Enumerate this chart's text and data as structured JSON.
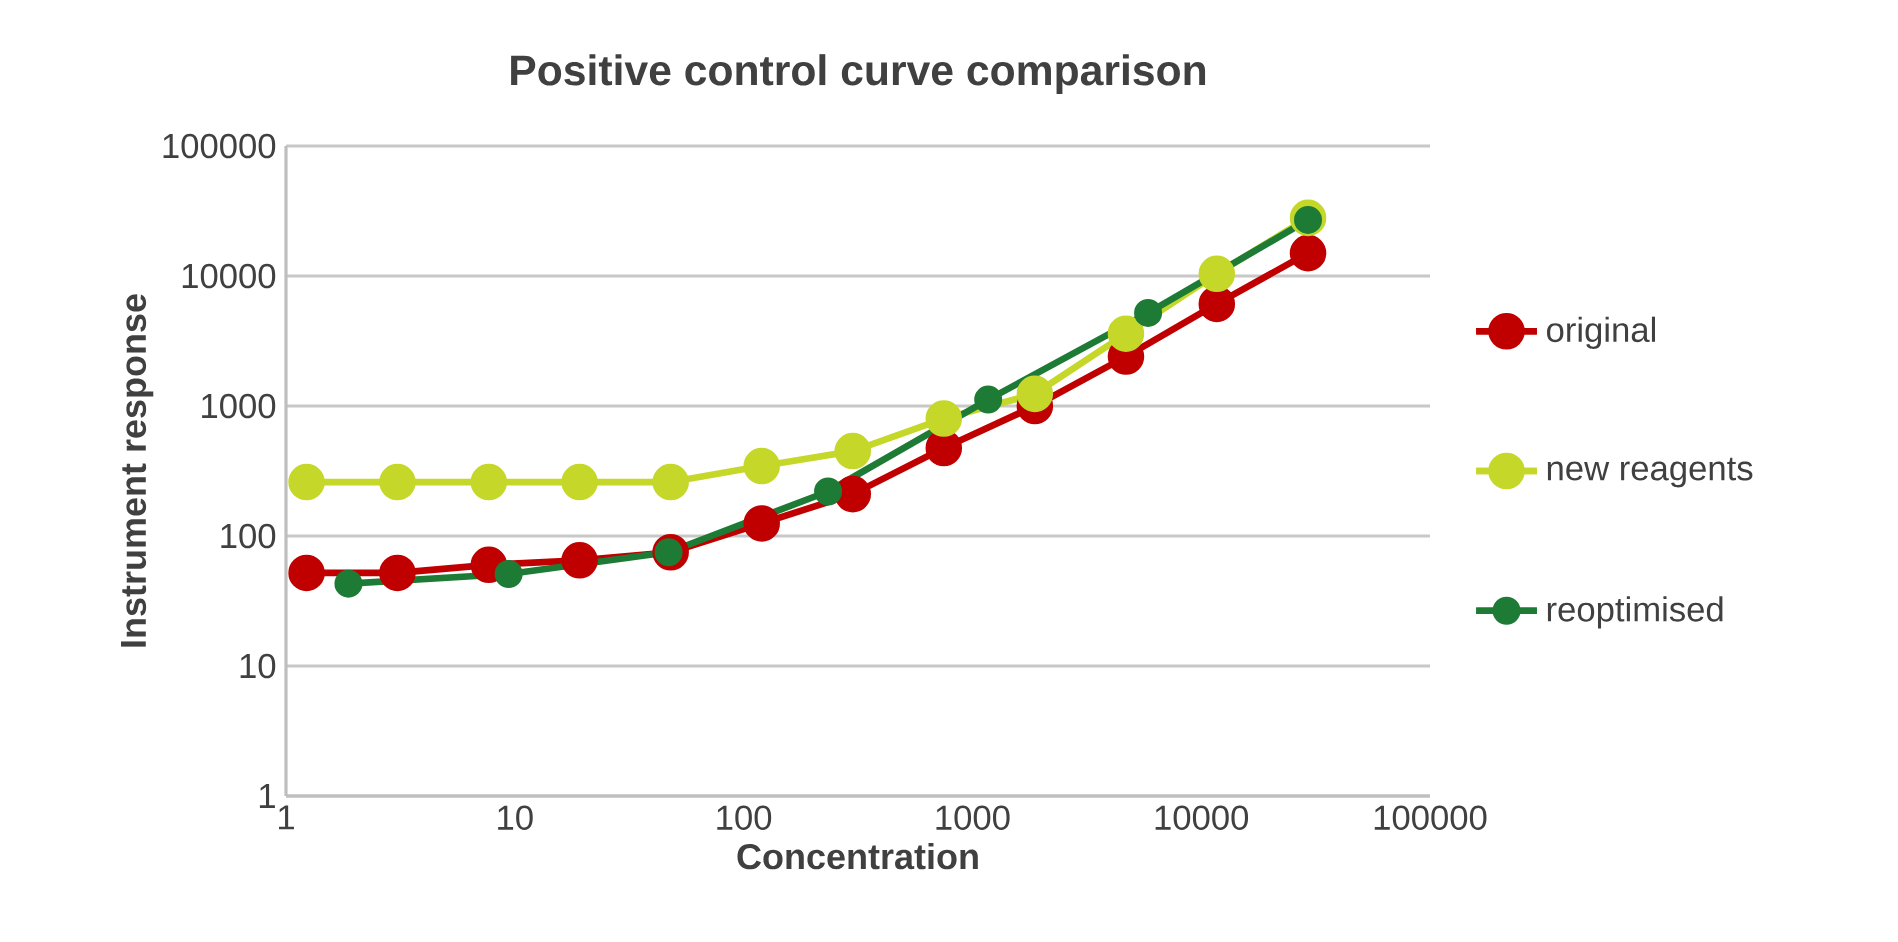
{
  "chart_data": {
    "type": "line",
    "title": "Positive control curve comparison",
    "xlabel": "Concentration",
    "ylabel": "Instrument response",
    "log": "xy",
    "xlim": [
      1,
      100000
    ],
    "ylim": [
      1,
      100000
    ],
    "xticks": [
      1,
      10,
      100,
      1000,
      10000,
      100000
    ],
    "yticks": [
      1,
      10,
      100,
      1000,
      10000,
      100000
    ],
    "grid": "y",
    "legend": "right",
    "marker": "circle",
    "line_style": "solid",
    "series": [
      {
        "name": "original",
        "color": "#c00000",
        "x": [
          1.23,
          3.07,
          7.7,
          19.2,
          48,
          120,
          300,
          750,
          1875,
          4690,
          11700,
          29300
        ],
        "values": [
          52,
          52,
          60,
          65,
          75,
          125,
          210,
          475,
          1000,
          2400,
          6100,
          15000
        ]
      },
      {
        "name": "new reagents",
        "color": "#c5d82a",
        "x": [
          1.23,
          3.07,
          7.7,
          19.2,
          48,
          120,
          300,
          750,
          1875,
          4690,
          11700,
          29300
        ],
        "values": [
          260,
          260,
          260,
          260,
          260,
          345,
          450,
          800,
          1240,
          3600,
          10400,
          28000
        ]
      },
      {
        "name": "reoptimised",
        "color": "#1e7b35",
        "x": [
          1.875,
          9.4,
          47,
          234,
          1172,
          5860,
          29300
        ],
        "values": [
          43,
          51,
          75,
          220,
          1120,
          5200,
          27000
        ]
      }
    ]
  }
}
